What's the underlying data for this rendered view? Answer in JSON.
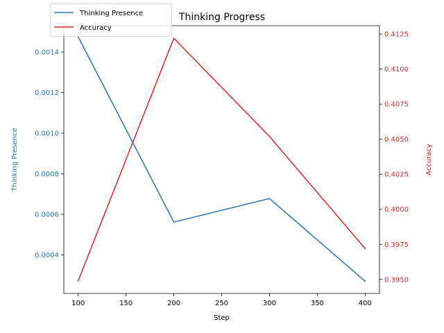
{
  "chart_data": {
    "type": "line",
    "title": "Thinking Progress",
    "xlabel": "Step",
    "x": [
      100,
      200,
      300,
      400
    ],
    "xlim": [
      85,
      415
    ],
    "x_ticks": [
      100,
      150,
      200,
      250,
      300,
      350,
      400
    ],
    "grid": false,
    "legend": "top-left",
    "series": [
      {
        "name": "Thinking Presence",
        "axis": "left",
        "color": "#1f77b4",
        "values": [
          0.001475,
          0.000562,
          0.000678,
          0.00027
        ]
      },
      {
        "name": "Accuracy",
        "axis": "right",
        "color": "#d62728",
        "values": [
          0.3949,
          0.4122,
          0.4052,
          0.3972
        ]
      }
    ],
    "y_left": {
      "label": "Thinking Presence",
      "color": "#1f77b4",
      "ylim": [
        0.00021,
        0.00153
      ],
      "ticks": [
        0.0004,
        0.0006,
        0.0008,
        0.001,
        0.0012,
        0.0014
      ],
      "tick_labels": [
        "0.0004",
        "0.0006",
        "0.0008",
        "0.0010",
        "0.0012",
        "0.0014"
      ]
    },
    "y_right": {
      "label": "Accuracy",
      "color": "#d62728",
      "ylim": [
        0.394,
        0.4131
      ],
      "ticks": [
        0.395,
        0.3975,
        0.4,
        0.4025,
        0.405,
        0.4075,
        0.41,
        0.4125
      ],
      "tick_labels": [
        "0.3950",
        "0.3975",
        "0.4000",
        "0.4025",
        "0.4050",
        "0.4075",
        "0.4100",
        "0.4125"
      ]
    }
  }
}
